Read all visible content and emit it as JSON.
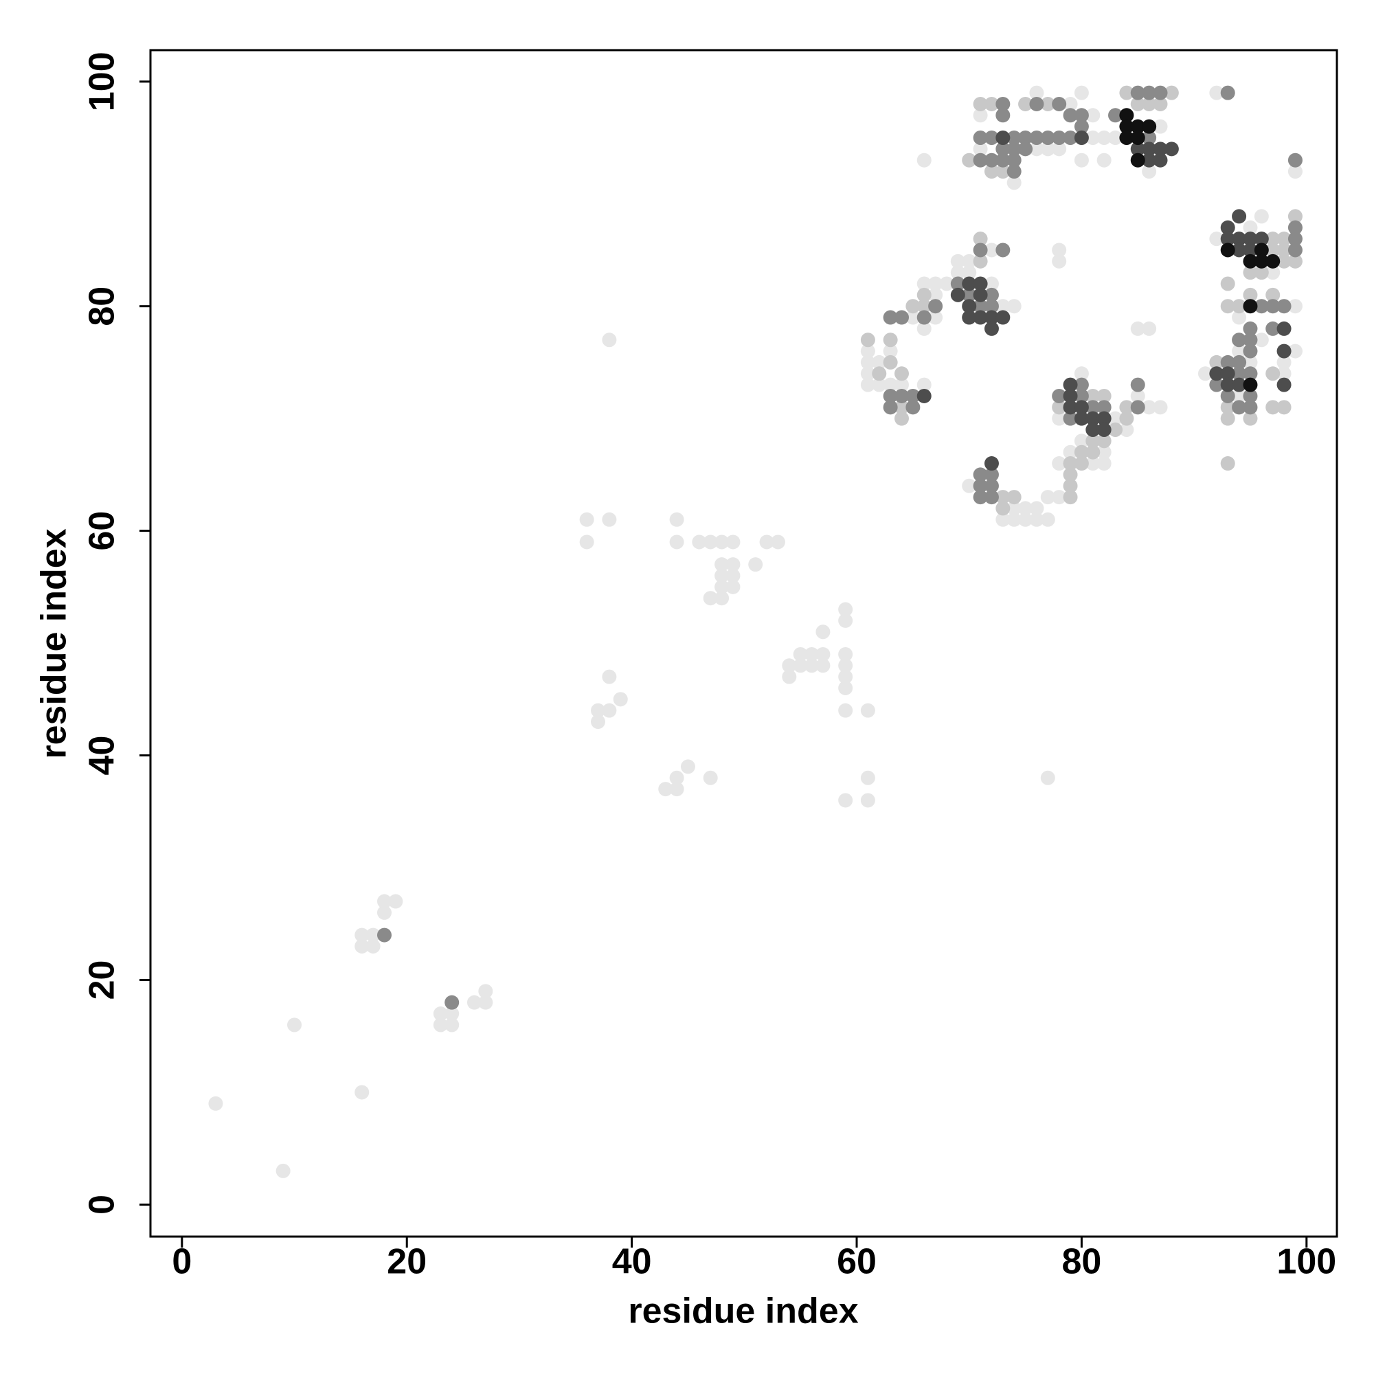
{
  "chart_data": {
    "type": "scatter",
    "x_label": "residue index",
    "y_label": "residue index",
    "xlim": [
      -2.8,
      102.7
    ],
    "ylim": [
      -2.85,
      102.8
    ],
    "xticks": [
      0,
      20,
      40,
      60,
      80,
      100
    ],
    "yticks": [
      0,
      20,
      40,
      60,
      80,
      100
    ],
    "series": [
      {
        "color": "#e6e6e6",
        "x": [
          3,
          9,
          10,
          16,
          16,
          17,
          16,
          17,
          18,
          19,
          18,
          23,
          23,
          24,
          24,
          26,
          27,
          27,
          36,
          36,
          38,
          38,
          37,
          37,
          38,
          38,
          39,
          43,
          44,
          44,
          45,
          47,
          44,
          44,
          46,
          47,
          48,
          49,
          48,
          49,
          48,
          49,
          48,
          49,
          47,
          48,
          51,
          52,
          53,
          54,
          54,
          55,
          56,
          57,
          55,
          56,
          57,
          57,
          59,
          59,
          59,
          59,
          59,
          59,
          59,
          61,
          59,
          61,
          61,
          77,
          66,
          61,
          61,
          61,
          61,
          62,
          63,
          62,
          63,
          64,
          66,
          65,
          66,
          67,
          68,
          67,
          66,
          67,
          70,
          69,
          69,
          70,
          72,
          72,
          73,
          74,
          78,
          78,
          85,
          86,
          70,
          74,
          73,
          74,
          75,
          76,
          77,
          75,
          76,
          77,
          78,
          78,
          82,
          81,
          82,
          80,
          79,
          80,
          83,
          86,
          85,
          78,
          84,
          87,
          71,
          81,
          82,
          71,
          76,
          77,
          78,
          74,
          76,
          79,
          80,
          80,
          81,
          82,
          83,
          86,
          87,
          92,
          99,
          95,
          96,
          92,
          97,
          99,
          94,
          96,
          94,
          99,
          95,
          98,
          91,
          98,
          94
        ],
        "y": [
          9,
          3,
          16,
          10,
          24,
          24,
          23,
          23,
          27,
          27,
          26,
          17,
          16,
          16,
          17,
          18,
          18,
          19,
          61,
          59,
          61,
          77,
          44,
          43,
          44,
          47,
          45,
          37,
          37,
          38,
          39,
          38,
          61,
          59,
          59,
          59,
          59,
          59,
          57,
          57,
          56,
          56,
          55,
          55,
          54,
          54,
          57,
          59,
          59,
          48,
          47,
          49,
          49,
          49,
          48,
          48,
          48,
          51,
          53,
          52,
          49,
          48,
          47,
          46,
          44,
          44,
          36,
          36,
          38,
          38,
          93,
          76,
          75,
          74,
          73,
          73,
          73,
          75,
          76,
          73,
          73,
          79,
          82,
          82,
          82,
          81,
          78,
          79,
          83,
          83,
          84,
          84,
          85,
          82,
          80,
          80,
          85,
          84,
          78,
          78,
          64,
          62,
          61,
          61,
          61,
          61,
          61,
          62,
          62,
          63,
          63,
          66,
          67,
          66,
          66,
          68,
          67,
          74,
          70,
          71,
          72,
          70,
          69,
          71,
          97,
          95,
          95,
          94,
          94,
          94,
          94,
          91,
          99,
          98,
          99,
          93,
          97,
          93,
          95,
          92,
          96,
          99,
          92,
          87,
          88,
          86,
          83,
          80,
          79,
          77,
          76,
          76,
          75,
          75,
          74,
          74,
          72
        ]
      },
      {
        "color": "#c8c8c8",
        "x": [
          99,
          79,
          79,
          79,
          79,
          80,
          80,
          81,
          81,
          82,
          83,
          84,
          84,
          78,
          81,
          82,
          73,
          74,
          73,
          71,
          71,
          66,
          66,
          65,
          61,
          62,
          63,
          63,
          64,
          64,
          64,
          71,
          72,
          70,
          72,
          73,
          75,
          77,
          85,
          86,
          87,
          84,
          88,
          93,
          93,
          94,
          96,
          97,
          92,
          97,
          97,
          98,
          93,
          93,
          95,
          97,
          98,
          97,
          98,
          98,
          99,
          95,
          95,
          93
        ],
        "y": [
          88,
          63,
          64,
          65,
          66,
          66,
          67,
          67,
          68,
          68,
          69,
          70,
          71,
          71,
          72,
          72,
          63,
          63,
          62,
          86,
          84,
          80,
          81,
          80,
          77,
          74,
          77,
          75,
          74,
          71,
          70,
          98,
          98,
          93,
          92,
          92,
          98,
          98,
          98,
          98,
          98,
          99,
          99,
          82,
          80,
          80,
          83,
          81,
          75,
          74,
          71,
          71,
          71,
          70,
          70,
          86,
          86,
          85,
          85,
          84,
          84,
          83,
          81,
          66
        ]
      },
      {
        "color": "#8a8a8a",
        "x": [
          18,
          24,
          63,
          64,
          65,
          63,
          65,
          63,
          64,
          66,
          67,
          69,
          70,
          71,
          72,
          71,
          73,
          72,
          71,
          71,
          72,
          72,
          71,
          72,
          78,
          80,
          80,
          81,
          82,
          79,
          85,
          85,
          73,
          73,
          71,
          72,
          74,
          75,
          76,
          77,
          78,
          79,
          71,
          72,
          73,
          74,
          73,
          74,
          75,
          74,
          76,
          78,
          79,
          80,
          80,
          83,
          86,
          85,
          86,
          87,
          93,
          99,
          99,
          99,
          99,
          96,
          97,
          98,
          95,
          97,
          95,
          94,
          95,
          93,
          94,
          94,
          95,
          92,
          93,
          95,
          94,
          95
        ],
        "y": [
          24,
          18,
          72,
          72,
          72,
          71,
          71,
          79,
          79,
          79,
          80,
          82,
          81,
          80,
          80,
          85,
          85,
          81,
          64,
          65,
          65,
          64,
          63,
          63,
          72,
          73,
          72,
          71,
          71,
          70,
          71,
          73,
          98,
          97,
          95,
          95,
          95,
          95,
          95,
          95,
          95,
          95,
          93,
          93,
          93,
          93,
          94,
          94,
          94,
          92,
          98,
          98,
          97,
          97,
          96,
          97,
          95,
          99,
          99,
          99,
          99,
          93,
          87,
          86,
          85,
          80,
          80,
          80,
          78,
          78,
          77,
          77,
          76,
          75,
          75,
          74,
          74,
          73,
          72,
          72,
          71,
          71
        ]
      },
      {
        "color": "#4d4d4d",
        "x": [
          66,
          70,
          71,
          69,
          71,
          70,
          70,
          71,
          72,
          73,
          72,
          72,
          79,
          79,
          79,
          80,
          80,
          81,
          82,
          81,
          82,
          73,
          80,
          85,
          86,
          87,
          88,
          86,
          87,
          93,
          94,
          93,
          94,
          95,
          96,
          94,
          95,
          98,
          98,
          92,
          93,
          93,
          94,
          98
        ],
        "y": [
          72,
          82,
          82,
          81,
          81,
          80,
          79,
          79,
          79,
          79,
          78,
          66,
          73,
          72,
          71,
          71,
          70,
          70,
          70,
          69,
          69,
          95,
          95,
          94,
          94,
          94,
          94,
          93,
          93,
          87,
          88,
          86,
          86,
          86,
          86,
          85,
          85,
          78,
          76,
          74,
          74,
          73,
          73,
          73
        ]
      },
      {
        "color": "#111111",
        "x": [
          84,
          84,
          85,
          86,
          84,
          85,
          85,
          93,
          96,
          95,
          96,
          97,
          95,
          95
        ],
        "y": [
          97,
          96,
          96,
          96,
          95,
          95,
          93,
          85,
          85,
          84,
          84,
          84,
          80,
          73
        ]
      }
    ]
  }
}
